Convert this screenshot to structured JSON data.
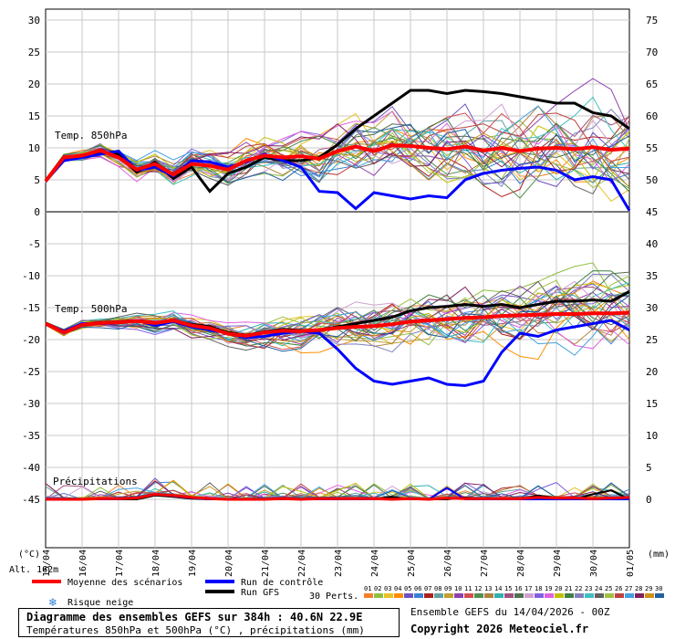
{
  "chart_data": {
    "type": "line",
    "dates": [
      "15/04",
      "16/04",
      "17/04",
      "18/04",
      "19/04",
      "20/04",
      "21/04",
      "22/04",
      "23/04",
      "24/04",
      "25/04",
      "26/04",
      "27/04",
      "28/04",
      "29/04",
      "30/04",
      "01/05"
    ],
    "left_axis": {
      "label": "(°C)",
      "ticks": [
        30,
        25,
        20,
        15,
        10,
        5,
        0,
        -5,
        -10,
        -15,
        -20,
        -25,
        -30,
        -35,
        -40,
        -45
      ]
    },
    "right_axis": {
      "label": "(mm)",
      "ticks": [
        75,
        70,
        65,
        60,
        55,
        50,
        45,
        40,
        35,
        30,
        25,
        20,
        15,
        10,
        5,
        0
      ]
    },
    "altitude_label": "Alt. 162m",
    "panel_labels": {
      "t850": "Temp. 850hPa",
      "t500": "Temp. 500hPa",
      "precip": "Précipitations"
    },
    "grid": true,
    "x_hours": [
      0,
      24,
      48,
      72,
      96,
      120,
      144,
      168,
      192,
      216,
      240,
      264,
      288,
      312,
      336,
      360,
      384
    ],
    "series": [
      {
        "name": "Moyenne des scénarios",
        "color": "#ff0000",
        "t850": [
          4.8,
          8.5,
          8.8,
          9.6,
          8.5,
          6.6,
          7.5,
          5.8,
          7.5,
          7.2,
          6.6,
          8.0,
          8.8,
          8.5,
          8.7,
          8.3,
          9.5,
          10.2,
          9.5,
          10.4,
          10.3,
          10.0,
          9.8,
          10.2,
          9.6,
          10.0,
          9.5,
          9.9,
          10.0,
          9.8,
          10.1,
          9.7,
          9.9
        ],
        "t500": [
          -17.5,
          -18.9,
          -17.7,
          -17.4,
          -17.3,
          -17.1,
          -17.4,
          -17.0,
          -17.8,
          -18.2,
          -19.1,
          -19.4,
          -18.9,
          -18.6,
          -18.7,
          -18.5,
          -18.2,
          -18.0,
          -17.9,
          -17.6,
          -17.2,
          -17.0,
          -16.8,
          -16.6,
          -16.5,
          -16.3,
          -16.2,
          -16.1,
          -16.0,
          -16.0,
          -15.9,
          -15.9,
          -15.8
        ],
        "precip": [
          0,
          0,
          0,
          0.1,
          0.1,
          0.2,
          0.8,
          0.6,
          0.3,
          0.1,
          0,
          0,
          0,
          0.1,
          0,
          0.1,
          0.1,
          0.1,
          0.1,
          0,
          0.1,
          0,
          0.2,
          0.1,
          0.1,
          0.1,
          0.1,
          0.3,
          0.2,
          0.2,
          0.1,
          0.2,
          0.3
        ]
      },
      {
        "name": "Run de contrôle",
        "color": "#0000ff",
        "t850": [
          4.8,
          8.0,
          8.5,
          9.0,
          9.5,
          6.5,
          7.0,
          5.6,
          8.0,
          7.8,
          7.0,
          7.8,
          9.0,
          8.0,
          7.0,
          3.2,
          3.0,
          0.5,
          3.0,
          2.5,
          2.0,
          2.5,
          2.2,
          5.0,
          6.0,
          6.5,
          6.8,
          7.0,
          6.5,
          5.0,
          5.5,
          5.0,
          0.2
        ],
        "t500": [
          -17.6,
          -18.7,
          -17.5,
          -17.5,
          -17.4,
          -17.0,
          -17.8,
          -17.2,
          -18.0,
          -18.5,
          -19.0,
          -19.7,
          -19.5,
          -19.0,
          -18.7,
          -19.0,
          -21.5,
          -24.5,
          -26.5,
          -27.0,
          -26.5,
          -26.0,
          -27.0,
          -27.2,
          -26.5,
          -22.0,
          -19.0,
          -19.5,
          -18.5,
          -18.0,
          -17.5,
          -17.0,
          -18.5
        ],
        "precip": [
          0,
          0,
          0,
          0,
          0,
          0.2,
          0.8,
          0.5,
          0.2,
          0,
          0,
          0,
          0,
          0,
          0,
          0,
          0,
          0,
          0,
          0,
          0,
          0,
          1.8,
          0,
          0,
          0,
          0,
          0,
          0,
          0,
          0,
          0,
          0
        ]
      },
      {
        "name": "Run GFS",
        "color": "#000000",
        "t850": [
          4.9,
          8.3,
          8.7,
          9.4,
          9.0,
          6.2,
          7.8,
          5.2,
          7.0,
          3.2,
          6.0,
          7.0,
          8.5,
          8.0,
          8.0,
          8.5,
          10.5,
          13.0,
          15.0,
          17.0,
          19.0,
          19.0,
          18.5,
          19.0,
          18.8,
          18.5,
          18.0,
          17.5,
          17.0,
          17.0,
          15.5,
          15.0,
          13.0
        ],
        "t500": [
          -17.4,
          -18.8,
          -17.6,
          -17.3,
          -17.2,
          -17.0,
          -17.3,
          -17.1,
          -17.6,
          -18.0,
          -18.9,
          -19.3,
          -18.8,
          -18.4,
          -18.6,
          -18.5,
          -18.0,
          -17.5,
          -17.0,
          -16.5,
          -15.5,
          -15.0,
          -14.8,
          -14.5,
          -14.8,
          -14.5,
          -15.0,
          -14.5,
          -14.0,
          -14.0,
          -13.8,
          -14.0,
          -12.5
        ],
        "precip": [
          0,
          0,
          0,
          0,
          0,
          0,
          0.6,
          0.4,
          0.1,
          0,
          0,
          0,
          0,
          0,
          0,
          0,
          0,
          0,
          0,
          0.4,
          0,
          0,
          0,
          0.3,
          0,
          0,
          0,
          0.6,
          0.2,
          0,
          0.8,
          1.4,
          0
        ]
      }
    ],
    "legend": {
      "mean": "Moyenne des scénarios",
      "control": "Run de contrôle",
      "gfs": "Run GFS",
      "snow": "Risque neige",
      "perts": "30 Perts.",
      "pert_numbers": [
        "01",
        "02",
        "03",
        "04",
        "05",
        "06",
        "07",
        "08",
        "09",
        "10",
        "11",
        "12",
        "13",
        "14",
        "15",
        "16",
        "17",
        "18",
        "19",
        "20",
        "21",
        "22",
        "23",
        "24",
        "25",
        "26",
        "27",
        "28",
        "29",
        "30"
      ],
      "pert_colors": [
        "#f47f2a",
        "#8fbf3f",
        "#e6c227",
        "#ff8c00",
        "#7050c0",
        "#3a7fd8",
        "#aa2020",
        "#60a0a0",
        "#c0a030",
        "#9040b0",
        "#d05050",
        "#509050",
        "#b08040",
        "#30b0b0",
        "#a05080",
        "#507050",
        "#d0a0d0",
        "#8060e0",
        "#e060e0",
        "#c0c000",
        "#408040",
        "#8080c0",
        "#40c0c0",
        "#606060",
        "#a0c040",
        "#c04040",
        "#40a0e0",
        "#802060",
        "#d09010",
        "#2060a0"
      ]
    },
    "snow_icon": "snowflake-icon"
  },
  "footer": {
    "title": "Diagramme des ensembles GEFS sur 384h : 40.6N 22.9E",
    "subtitle": "Températures 850hPa et 500hPa (°C) , précipitations (mm)",
    "ensemble_run": "Ensemble GEFS du 14/04/2026 - 00Z",
    "copyright": "Copyright 2026 Meteociel.fr"
  }
}
